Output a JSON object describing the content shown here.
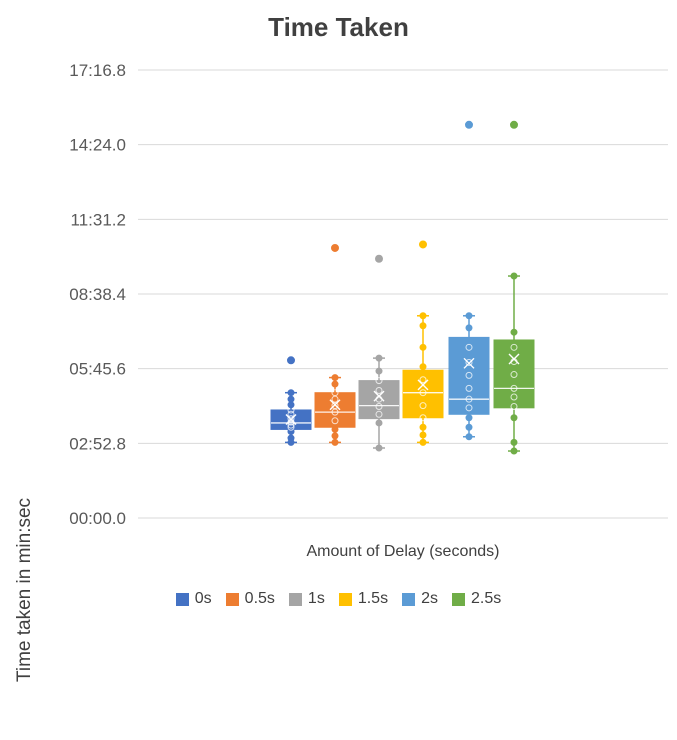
{
  "chart_data": {
    "type": "box",
    "title": "Time Taken",
    "xlabel": "Amount of Delay (seconds)",
    "ylabel": "Time taken in min:sec",
    "y_unit": "seconds",
    "ylim": [
      0,
      1036.8
    ],
    "y_ticks": [
      {
        "value": 0,
        "label": "00:00.0"
      },
      {
        "value": 172.8,
        "label": "02:52.8"
      },
      {
        "value": 345.6,
        "label": "05:45.6"
      },
      {
        "value": 518.4,
        "label": "08:38.4"
      },
      {
        "value": 691.2,
        "label": "11:31.2"
      },
      {
        "value": 864.0,
        "label": "14:24.0"
      },
      {
        "value": 1036.8,
        "label": "17:16.8"
      }
    ],
    "gridlines": true,
    "legend_position": "bottom",
    "series": [
      {
        "name": "0s",
        "color": "#4472C4",
        "min": 175,
        "q1": 205,
        "median": 220,
        "q3": 250,
        "max": 290,
        "mean": 228,
        "outliers": [
          365
        ],
        "points": [
          175,
          185,
          200,
          210,
          215,
          222,
          230,
          240,
          250,
          262,
          275,
          290
        ]
      },
      {
        "name": "0.5s",
        "color": "#ED7D31",
        "min": 175,
        "q1": 210,
        "median": 245,
        "q3": 290,
        "max": 325,
        "mean": 262,
        "outliers": [
          625
        ],
        "points": [
          175,
          190,
          205,
          225,
          245,
          260,
          275,
          290,
          310,
          325
        ]
      },
      {
        "name": "1s",
        "color": "#A5A5A5",
        "min": 162,
        "q1": 230,
        "median": 260,
        "q3": 318,
        "max": 370,
        "mean": 282,
        "outliers": [
          600
        ],
        "points": [
          162,
          220,
          240,
          258,
          275,
          295,
          318,
          340,
          370
        ]
      },
      {
        "name": "1.5s",
        "color": "#FFC000",
        "min": 175,
        "q1": 232,
        "median": 290,
        "q3": 342,
        "max": 468,
        "mean": 308,
        "outliers": [
          633
        ],
        "points": [
          175,
          192,
          210,
          232,
          260,
          290,
          320,
          350,
          395,
          445,
          468
        ]
      },
      {
        "name": "2s",
        "color": "#5B9BD5",
        "min": 188,
        "q1": 240,
        "median": 275,
        "q3": 418,
        "max": 468,
        "mean": 358,
        "outliers": [
          910
        ],
        "points": [
          188,
          210,
          232,
          255,
          275,
          300,
          330,
          360,
          395,
          440,
          468
        ]
      },
      {
        "name": "2.5s",
        "color": "#70AD47",
        "min": 155,
        "q1": 255,
        "median": 300,
        "q3": 412,
        "max": 560,
        "mean": 368,
        "outliers": [
          910
        ],
        "points": [
          155,
          175,
          232,
          258,
          280,
          300,
          332,
          362,
          395,
          430,
          560
        ]
      }
    ]
  }
}
